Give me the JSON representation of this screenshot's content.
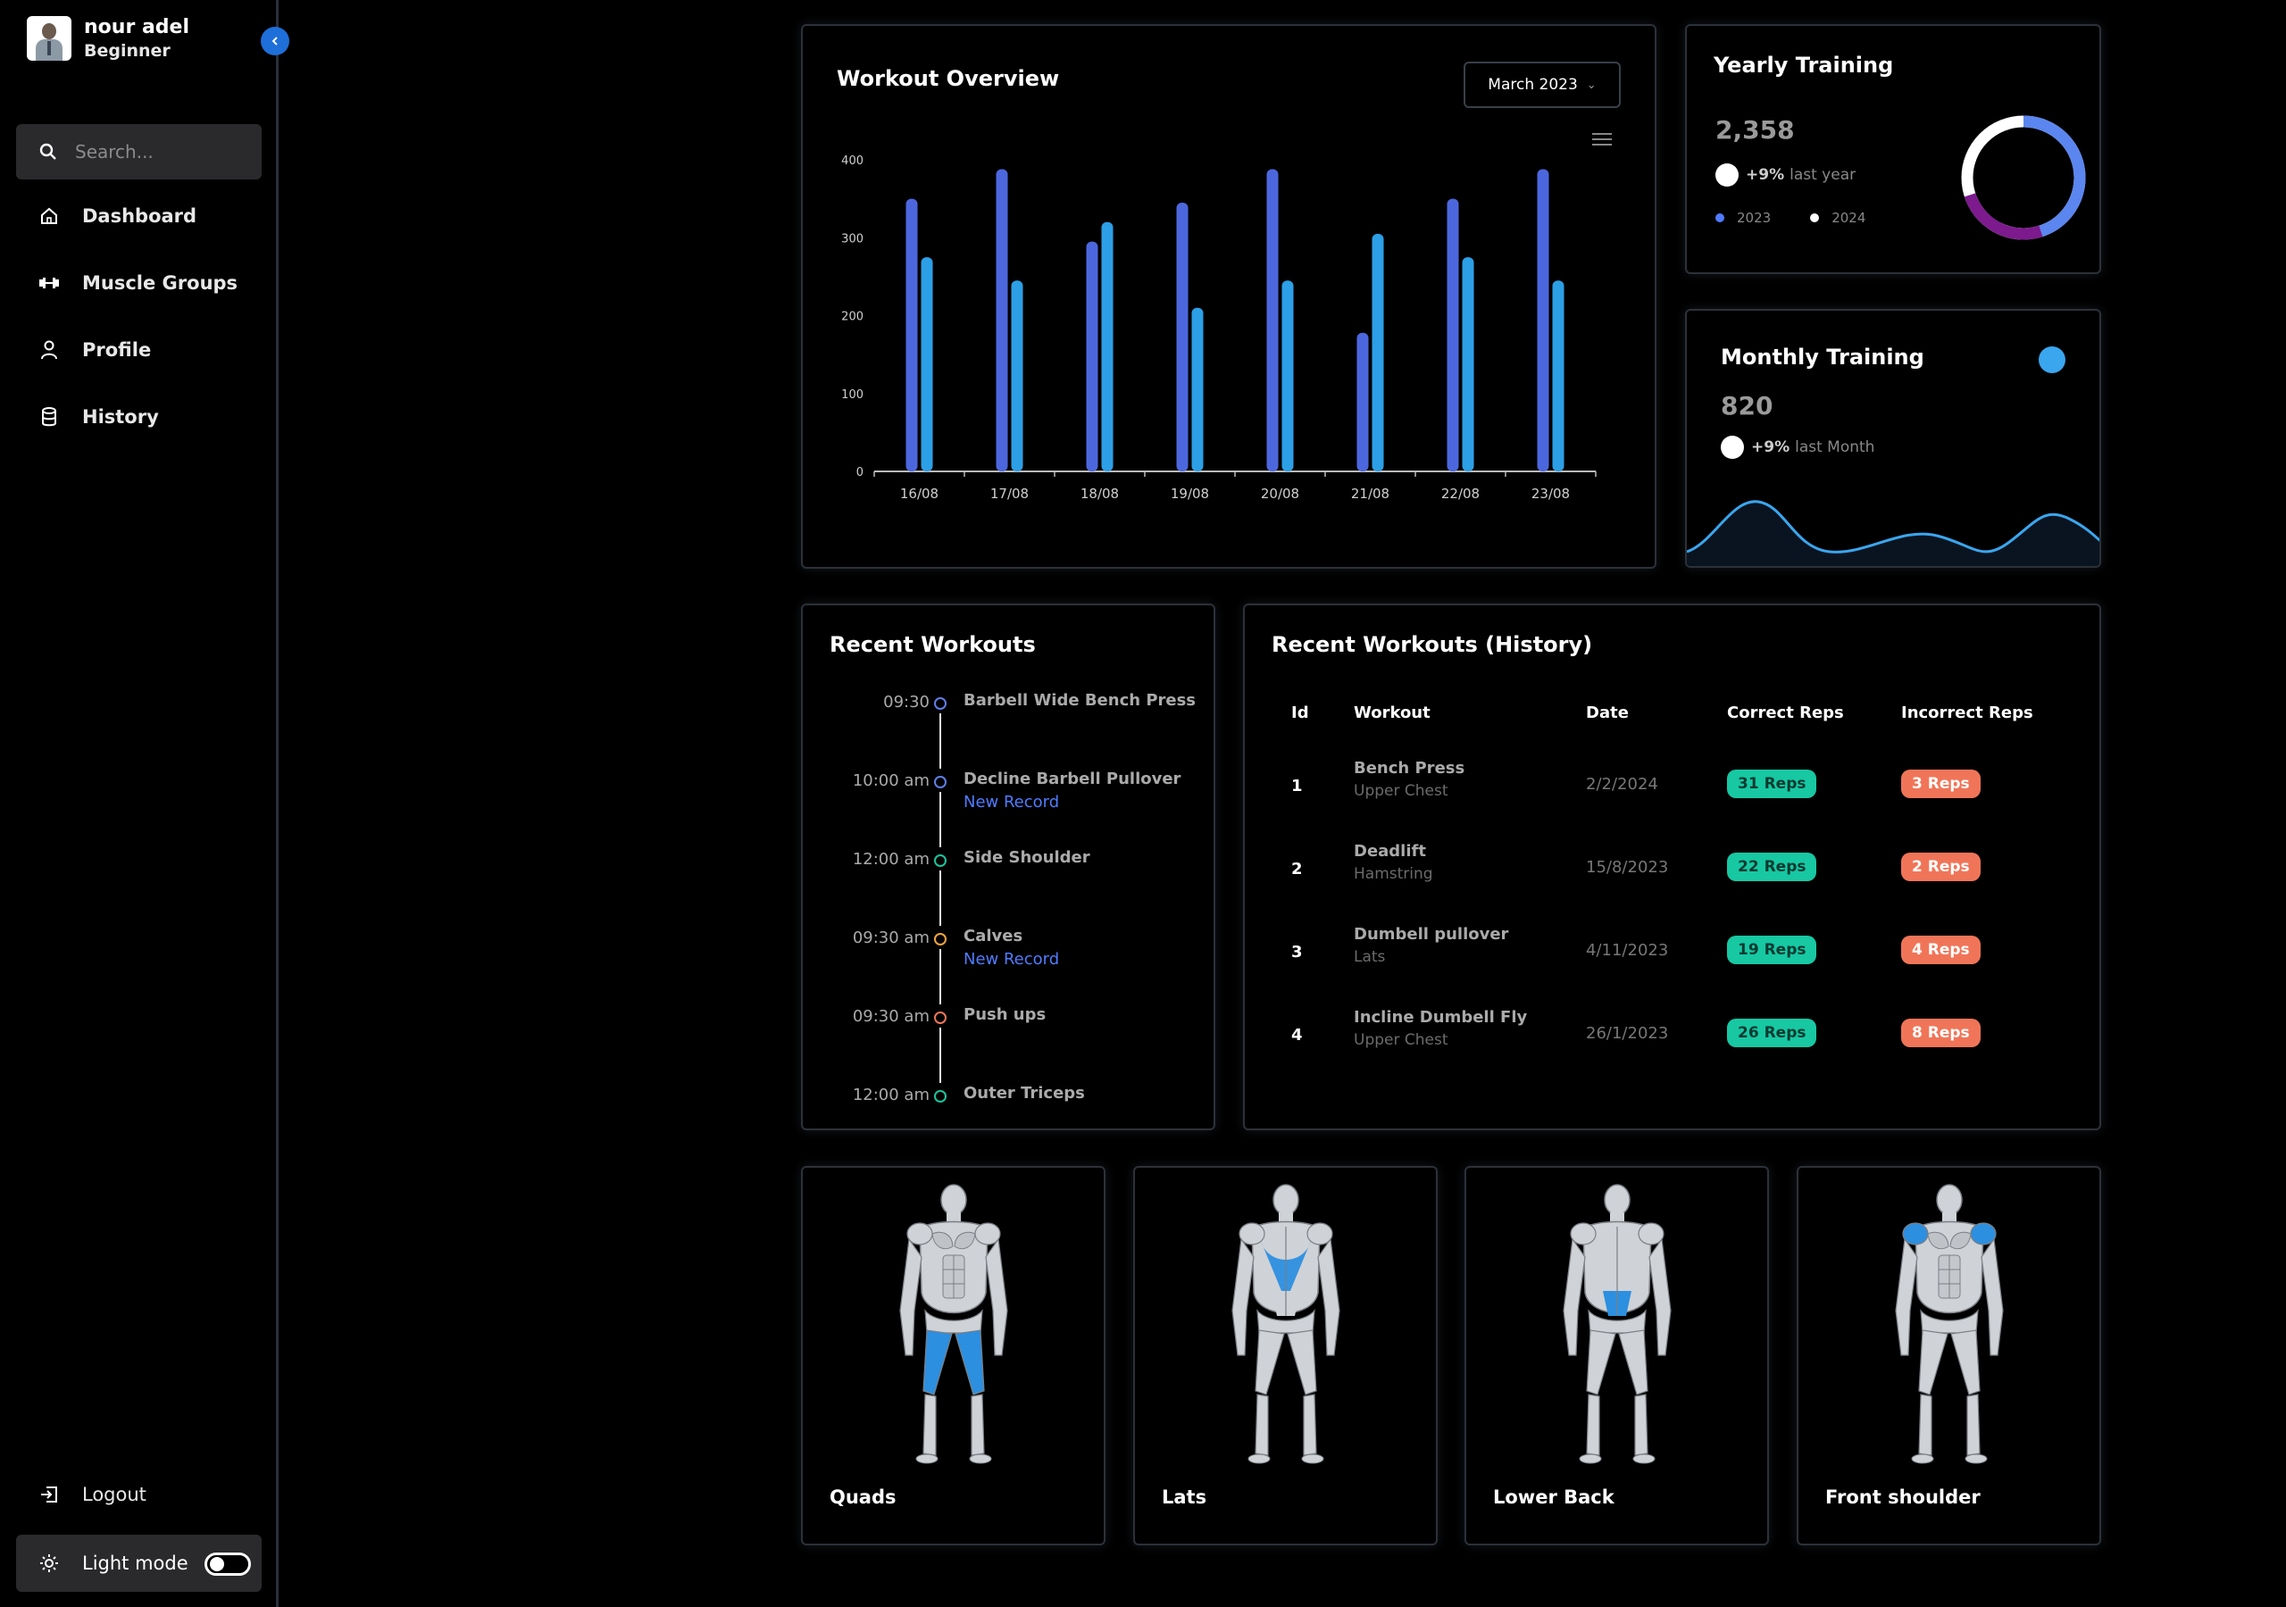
{
  "user": {
    "name": "nour adel",
    "level": "Beginner"
  },
  "search": {
    "placeholder": "Search..."
  },
  "nav": [
    {
      "label": "Dashboard",
      "icon": "home-icon"
    },
    {
      "label": "Muscle Groups",
      "icon": "dumbbell-icon"
    },
    {
      "label": "Profile",
      "icon": "user-icon"
    },
    {
      "label": "History",
      "icon": "database-icon"
    }
  ],
  "logout_label": "Logout",
  "light_mode_label": "Light mode",
  "workout_overview": {
    "title": "Workout Overview",
    "month": "March 2023"
  },
  "chart_data": {
    "type": "bar",
    "categories": [
      "16/08",
      "17/08",
      "18/08",
      "19/08",
      "20/08",
      "21/08",
      "22/08",
      "23/08"
    ],
    "series": [
      {
        "values": [
          350,
          388,
          295,
          345,
          388,
          178,
          350,
          388
        ]
      },
      {
        "values": [
          275,
          245,
          320,
          210,
          245,
          305,
          275,
          245
        ]
      }
    ],
    "ylim": [
      0,
      400
    ],
    "yticks": [
      0,
      100,
      200,
      300,
      400
    ],
    "colors": [
      "#4c67de",
      "#2c9fe6"
    ]
  },
  "yearly": {
    "title": "Yearly Training",
    "value": "2,358",
    "pct": "+9%",
    "pct_label": "last year",
    "legend": [
      "2023",
      "2024"
    ],
    "ring": {
      "a": 0.45,
      "b": 0.25
    }
  },
  "monthly": {
    "title": "Monthly Training",
    "value": "820",
    "pct": "+9%",
    "pct_label": "last Month"
  },
  "recent": {
    "title": "Recent Workouts",
    "items": [
      {
        "time": "09:30",
        "title": "Barbell Wide Bench Press",
        "badge": "",
        "color": "#5f7ee8"
      },
      {
        "time": "10:00 am",
        "title": "Decline Barbell Pullover",
        "badge": "New Record",
        "color": "#5f7ee8"
      },
      {
        "time": "12:00 am",
        "title": "Side Shoulder",
        "badge": "",
        "color": "#19c59b"
      },
      {
        "time": "09:30 am",
        "title": "Calves",
        "badge": "New Record",
        "color": "#f3a53b"
      },
      {
        "time": "09:30 am",
        "title": "Push ups",
        "badge": "",
        "color": "#f07558"
      },
      {
        "time": "12:00 am",
        "title": "Outer Triceps",
        "badge": "",
        "color": "#19c59b"
      }
    ]
  },
  "history": {
    "title": "Recent Workouts (History)",
    "columns": [
      "Id",
      "Workout",
      "Date",
      "Correct Reps",
      "Incorrect Reps"
    ],
    "rows": [
      {
        "id": "1",
        "workout": "Bench Press",
        "muscle": "Upper Chest",
        "date": "2/2/2024",
        "correct": "31 Reps",
        "incorrect": "3 Reps"
      },
      {
        "id": "2",
        "workout": "Deadlift",
        "muscle": "Hamstring",
        "date": "15/8/2023",
        "correct": "22 Reps",
        "incorrect": "2 Reps"
      },
      {
        "id": "3",
        "workout": "Dumbell pullover",
        "muscle": "Lats",
        "date": "4/11/2023",
        "correct": "19 Reps",
        "incorrect": "4 Reps"
      },
      {
        "id": "4",
        "workout": "Incline Dumbell Fly",
        "muscle": "Upper Chest",
        "date": "26/1/2023",
        "correct": "26 Reps",
        "incorrect": "8 Reps"
      }
    ]
  },
  "muscles": [
    {
      "label": "Quads",
      "view": "front",
      "highlight": "quads"
    },
    {
      "label": "Lats",
      "view": "back",
      "highlight": "lats"
    },
    {
      "label": "Lower Back",
      "view": "back",
      "highlight": "lower-back"
    },
    {
      "label": "Front shoulder",
      "view": "front",
      "highlight": "shoulders"
    }
  ]
}
